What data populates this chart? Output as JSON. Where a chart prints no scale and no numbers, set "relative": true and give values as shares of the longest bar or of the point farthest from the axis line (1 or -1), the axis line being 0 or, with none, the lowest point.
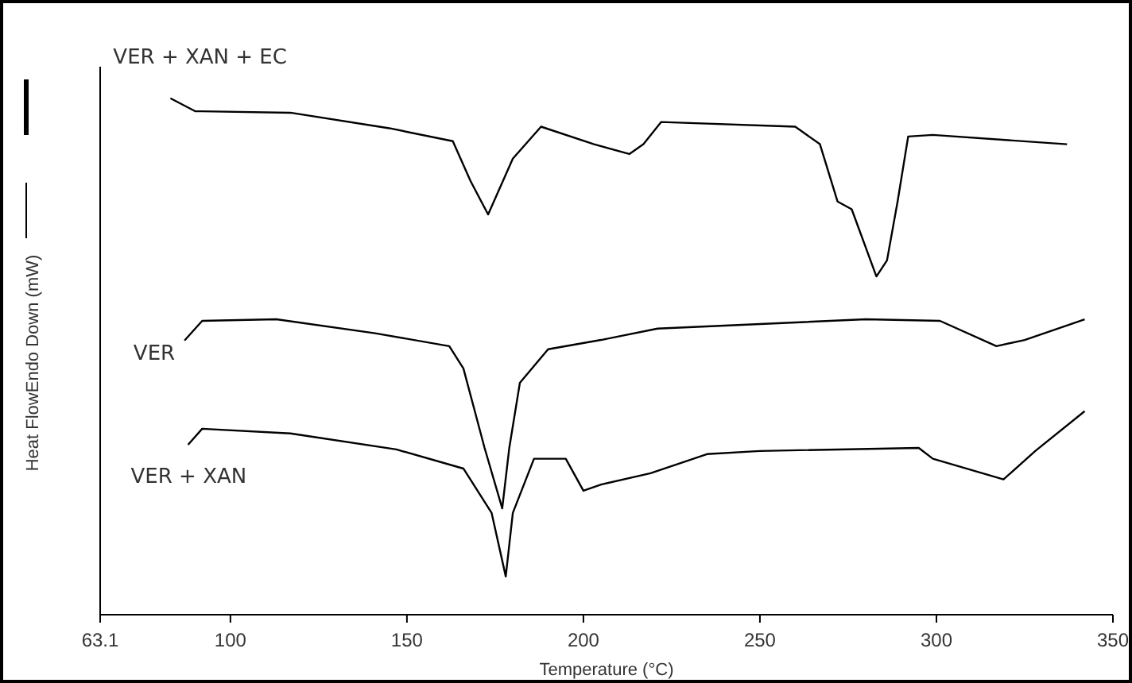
{
  "chart_data": {
    "type": "line",
    "relative": true,
    "xlabel": "Temperature (°C)",
    "ylabel": "Heat FlowEndo Down (mW)",
    "xlim": [
      63.1,
      350
    ],
    "xticks": [
      63.1,
      100,
      150,
      200,
      250,
      300,
      350
    ],
    "grid": false,
    "marker": "none",
    "line_style": "solid",
    "series": [
      {
        "name": "VER + XAN + EC",
        "color": "#000000",
        "x": [
          83,
          90,
          117,
          145,
          163,
          168,
          173,
          180,
          188,
          203,
          213,
          217,
          222,
          260,
          267,
          272,
          276,
          283,
          286,
          289,
          292,
          299,
          337
        ],
        "values": [
          1.0,
          0.975,
          0.972,
          0.942,
          0.917,
          0.84,
          0.775,
          0.883,
          0.945,
          0.911,
          0.892,
          0.911,
          0.954,
          0.945,
          0.911,
          0.8,
          0.785,
          0.655,
          0.686,
          0.8,
          0.926,
          0.929,
          0.911
        ]
      },
      {
        "name": "VER",
        "color": "#000000",
        "x": [
          87,
          92,
          113,
          141,
          162,
          166,
          172,
          177,
          179,
          182,
          190,
          205,
          221,
          280,
          301,
          317,
          325,
          342
        ],
        "values": [
          0.531,
          0.569,
          0.572,
          0.545,
          0.52,
          0.477,
          0.323,
          0.206,
          0.323,
          0.449,
          0.514,
          0.532,
          0.554,
          0.572,
          0.569,
          0.52,
          0.532,
          0.572
        ]
      },
      {
        "name": "VER + XAN",
        "color": "#000000",
        "x": [
          88,
          92,
          117,
          147,
          166,
          174,
          178,
          180,
          186,
          195,
          200,
          205,
          219,
          235,
          250,
          295,
          299,
          319,
          328,
          342
        ],
        "values": [
          0.329,
          0.36,
          0.351,
          0.32,
          0.283,
          0.197,
          0.074,
          0.197,
          0.302,
          0.302,
          0.24,
          0.252,
          0.274,
          0.311,
          0.317,
          0.323,
          0.302,
          0.262,
          0.317,
          0.394
        ]
      }
    ]
  }
}
